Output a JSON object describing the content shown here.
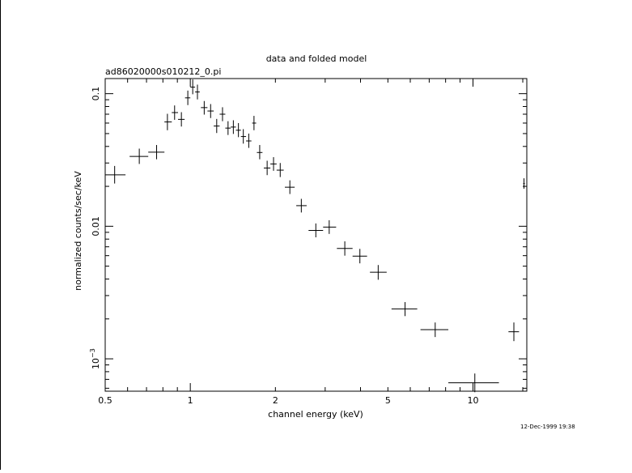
{
  "chart_data": {
    "type": "scatter",
    "title": "data and folded model",
    "subtitle": "ad86020000s010212_0.pi",
    "xlabel": "channel energy (keV)",
    "ylabel": "normalized counts/sec/keV",
    "xscale": "log",
    "yscale": "log",
    "xlim": [
      0.5,
      15.5
    ],
    "ylim": [
      0.00057,
      0.13
    ],
    "x_ticks": [
      {
        "value": 0.5,
        "label": "0.5"
      },
      {
        "value": 1,
        "label": "1"
      },
      {
        "value": 2,
        "label": "2"
      },
      {
        "value": 5,
        "label": "5"
      },
      {
        "value": 10,
        "label": "10"
      }
    ],
    "y_ticks": [
      {
        "value": 0.1,
        "label": "0.1"
      },
      {
        "value": 0.01,
        "label": "0.01"
      },
      {
        "value": 0.001,
        "label": "10",
        "exponent": "−3"
      }
    ],
    "timestamp": "12-Dec-1999 19:38",
    "grid": false,
    "legend": "none",
    "series": [
      {
        "points": [
          {
            "x": 0.54,
            "xlo": 0.5,
            "xhi": 0.59,
            "y": 0.0244,
            "ylo": 0.021,
            "yhi": 0.0285
          },
          {
            "x": 0.66,
            "xlo": 0.61,
            "xhi": 0.71,
            "y": 0.0336,
            "ylo": 0.0295,
            "yhi": 0.0385
          },
          {
            "x": 0.76,
            "xlo": 0.71,
            "xhi": 0.81,
            "y": 0.0362,
            "ylo": 0.032,
            "yhi": 0.041
          },
          {
            "x": 0.83,
            "xlo": 0.81,
            "xhi": 0.86,
            "y": 0.0612,
            "ylo": 0.053,
            "yhi": 0.0705
          },
          {
            "x": 0.88,
            "xlo": 0.86,
            "xhi": 0.905,
            "y": 0.072,
            "ylo": 0.0635,
            "yhi": 0.0815
          },
          {
            "x": 0.93,
            "xlo": 0.905,
            "xhi": 0.955,
            "y": 0.064,
            "ylo": 0.0565,
            "yhi": 0.0725
          },
          {
            "x": 0.98,
            "xlo": 0.958,
            "xhi": 1.0,
            "y": 0.093,
            "ylo": 0.082,
            "yhi": 0.1055
          },
          {
            "x": 1.02,
            "xlo": 1.0,
            "xhi": 1.04,
            "y": 0.112,
            "ylo": 0.099,
            "yhi": 0.128
          },
          {
            "x": 1.06,
            "xlo": 1.04,
            "xhi": 1.08,
            "y": 0.103,
            "ylo": 0.0905,
            "yhi": 0.117
          },
          {
            "x": 1.12,
            "xlo": 1.09,
            "xhi": 1.15,
            "y": 0.0785,
            "ylo": 0.0695,
            "yhi": 0.088
          },
          {
            "x": 1.18,
            "xlo": 1.15,
            "xhi": 1.21,
            "y": 0.074,
            "ylo": 0.0655,
            "yhi": 0.0835
          },
          {
            "x": 1.24,
            "xlo": 1.21,
            "xhi": 1.27,
            "y": 0.057,
            "ylo": 0.0505,
            "yhi": 0.0645
          },
          {
            "x": 1.3,
            "xlo": 1.27,
            "xhi": 1.33,
            "y": 0.07,
            "ylo": 0.062,
            "yhi": 0.079
          },
          {
            "x": 1.36,
            "xlo": 1.33,
            "xhi": 1.39,
            "y": 0.055,
            "ylo": 0.0488,
            "yhi": 0.062
          },
          {
            "x": 1.42,
            "xlo": 1.39,
            "xhi": 1.45,
            "y": 0.056,
            "ylo": 0.0497,
            "yhi": 0.063
          },
          {
            "x": 1.48,
            "xlo": 1.45,
            "xhi": 1.51,
            "y": 0.053,
            "ylo": 0.047,
            "yhi": 0.06
          },
          {
            "x": 1.54,
            "xlo": 1.51,
            "xhi": 1.575,
            "y": 0.0475,
            "ylo": 0.042,
            "yhi": 0.054
          },
          {
            "x": 1.61,
            "xlo": 1.575,
            "xhi": 1.645,
            "y": 0.044,
            "ylo": 0.039,
            "yhi": 0.05
          },
          {
            "x": 1.68,
            "xlo": 1.655,
            "xhi": 1.71,
            "y": 0.06,
            "ylo": 0.053,
            "yhi": 0.068
          },
          {
            "x": 1.76,
            "xlo": 1.72,
            "xhi": 1.8,
            "y": 0.036,
            "ylo": 0.032,
            "yhi": 0.041
          },
          {
            "x": 1.87,
            "xlo": 1.82,
            "xhi": 1.92,
            "y": 0.0275,
            "ylo": 0.0243,
            "yhi": 0.0312
          },
          {
            "x": 1.97,
            "xlo": 1.92,
            "xhi": 2.02,
            "y": 0.0295,
            "ylo": 0.0262,
            "yhi": 0.0332
          },
          {
            "x": 2.08,
            "xlo": 2.02,
            "xhi": 2.14,
            "y": 0.0265,
            "ylo": 0.0235,
            "yhi": 0.03
          },
          {
            "x": 2.25,
            "xlo": 2.16,
            "xhi": 2.34,
            "y": 0.0197,
            "ylo": 0.0175,
            "yhi": 0.0222
          },
          {
            "x": 2.47,
            "xlo": 2.37,
            "xhi": 2.58,
            "y": 0.0143,
            "ylo": 0.0127,
            "yhi": 0.0161
          },
          {
            "x": 2.78,
            "xlo": 2.62,
            "xhi": 2.95,
            "y": 0.0093,
            "ylo": 0.00825,
            "yhi": 0.0105
          },
          {
            "x": 3.1,
            "xlo": 2.95,
            "xhi": 3.28,
            "y": 0.00985,
            "ylo": 0.00875,
            "yhi": 0.0111
          },
          {
            "x": 3.52,
            "xlo": 3.3,
            "xhi": 3.75,
            "y": 0.0068,
            "ylo": 0.006,
            "yhi": 0.0077
          },
          {
            "x": 3.98,
            "xlo": 3.75,
            "xhi": 4.22,
            "y": 0.00595,
            "ylo": 0.00525,
            "yhi": 0.00675
          },
          {
            "x": 4.62,
            "xlo": 4.32,
            "xhi": 4.95,
            "y": 0.0045,
            "ylo": 0.00395,
            "yhi": 0.0051
          },
          {
            "x": 5.75,
            "xlo": 5.15,
            "xhi": 6.35,
            "y": 0.00238,
            "ylo": 0.0021,
            "yhi": 0.00268
          },
          {
            "x": 7.35,
            "xlo": 6.52,
            "xhi": 8.18,
            "y": 0.00166,
            "ylo": 0.00146,
            "yhi": 0.00188
          },
          {
            "x": 10.15,
            "xlo": 8.18,
            "xhi": 12.35,
            "y": 0.00066,
            "ylo": 0.00056,
            "yhi": 0.000775
          },
          {
            "x": 13.95,
            "xlo": 13.35,
            "xhi": 14.55,
            "y": 0.0016,
            "ylo": 0.00136,
            "yhi": 0.00188
          },
          {
            "x": 15.15,
            "xlo": 15.05,
            "xhi": 15.25,
            "y": 0.021,
            "ylo": 0.0192,
            "yhi": 0.023
          }
        ]
      }
    ]
  }
}
